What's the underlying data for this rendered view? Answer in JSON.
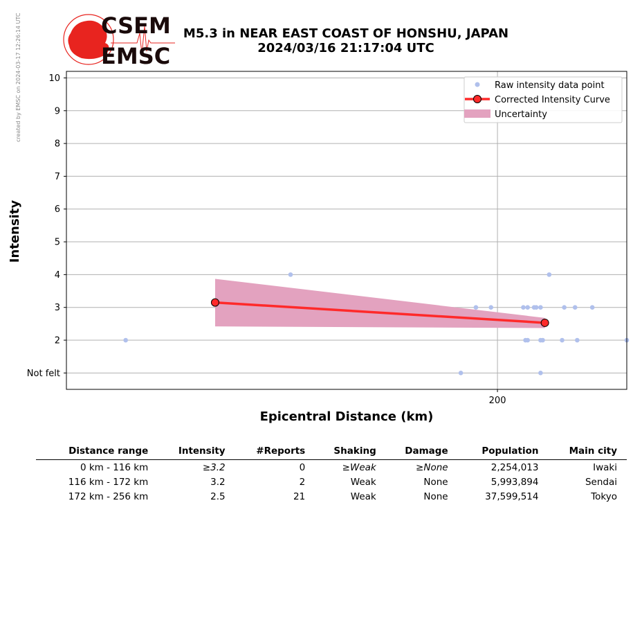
{
  "side_note": "created by EMSC on 2024-03-17 12:26:14 UTC",
  "logo": {
    "top_text": "CSEM",
    "bottom_text": "EMSC",
    "color": "#e8241f",
    "text_color": "#1a0a0a"
  },
  "header": {
    "title_line1": "M5.3 in NEAR EAST COAST OF HONSHU, JAPAN",
    "title_line2": "2024/03/16 21:17:04 UTC"
  },
  "chart_data": {
    "type": "scatter",
    "xlabel": "Epicentral Distance (km)",
    "ylabel": "Intensity",
    "xlim": [
      0,
      260
    ],
    "ylim": [
      0.5,
      10.2
    ],
    "x_ticks": [
      200
    ],
    "y_ticks": [
      1,
      2,
      3,
      4,
      5,
      6,
      7,
      8,
      9,
      10
    ],
    "y_tick_labels": [
      "Not felt",
      "2",
      "3",
      "4",
      "5",
      "6",
      "7",
      "8",
      "9",
      "10"
    ],
    "grid": true,
    "legend_position": "top-right",
    "legend": [
      "Raw intensity data point",
      "Corrected Intensity Curve",
      "Uncertainty"
    ],
    "colors": {
      "raw": "#b0c0ec",
      "curve": "#ff2a2a",
      "uncertainty": "#e3a2bf",
      "marker_edge": "#000000"
    },
    "raw_points": [
      {
        "x": 27.5,
        "y": 2
      },
      {
        "x": 104,
        "y": 4
      },
      {
        "x": 183,
        "y": 1
      },
      {
        "x": 190,
        "y": 3
      },
      {
        "x": 197,
        "y": 3
      },
      {
        "x": 212,
        "y": 3
      },
      {
        "x": 214,
        "y": 3
      },
      {
        "x": 217,
        "y": 3
      },
      {
        "x": 218,
        "y": 3
      },
      {
        "x": 220,
        "y": 3
      },
      {
        "x": 213,
        "y": 2
      },
      {
        "x": 214,
        "y": 2
      },
      {
        "x": 220,
        "y": 2
      },
      {
        "x": 221,
        "y": 2
      },
      {
        "x": 224,
        "y": 4
      },
      {
        "x": 231,
        "y": 3
      },
      {
        "x": 236,
        "y": 3
      },
      {
        "x": 230,
        "y": 2
      },
      {
        "x": 237,
        "y": 2
      },
      {
        "x": 244,
        "y": 3
      },
      {
        "x": 220,
        "y": 1
      },
      {
        "x": 260,
        "y": 2
      }
    ],
    "curve": [
      {
        "x": 69,
        "y": 3.15
      },
      {
        "x": 222,
        "y": 2.53
      }
    ],
    "uncertainty": {
      "x": [
        69,
        222
      ],
      "upper": [
        3.87,
        2.68
      ],
      "lower": [
        2.42,
        2.37
      ]
    }
  },
  "table": {
    "headers": [
      "Distance range",
      "Intensity",
      "#Reports",
      "Shaking",
      "Damage",
      "Population",
      "Main city"
    ],
    "rows": [
      {
        "range": "0 km -  116 km",
        "intensity": "≥3.2",
        "reports": "0",
        "shaking": "≥Weak",
        "damage": "≥None",
        "population": "2,254,013",
        "city": "Iwaki",
        "italic": true
      },
      {
        "range": "116 km -  172 km",
        "intensity": "3.2",
        "reports": "2",
        "shaking": "Weak",
        "damage": "None",
        "population": "5,993,894",
        "city": "Sendai",
        "italic": false
      },
      {
        "range": "172 km -  256 km",
        "intensity": "2.5",
        "reports": "21",
        "shaking": "Weak",
        "damage": "None",
        "population": "37,599,514",
        "city": "Tokyo",
        "italic": false
      }
    ]
  }
}
